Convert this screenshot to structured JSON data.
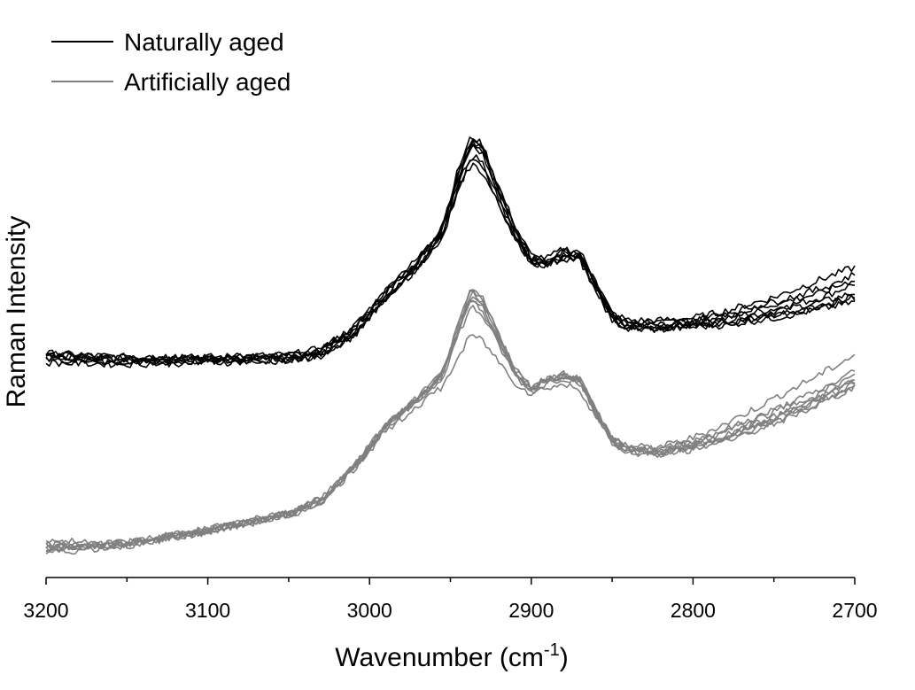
{
  "chart_data": {
    "type": "line",
    "title": "",
    "xlabel": "Wavenumber (cm",
    "xlabel_sup": "-1",
    "xlabel_close": ")",
    "ylabel": "Raman Intensity",
    "x_reversed": true,
    "xlim": [
      3200,
      2700
    ],
    "ylim": [
      0,
      100
    ],
    "y_ticks_shown": false,
    "x_major_ticks": [
      3200,
      3100,
      3000,
      2900,
      2800,
      2700
    ],
    "x_tick_labels": [
      "3200",
      "3100",
      "3000",
      "2900",
      "2800",
      "2700"
    ],
    "x_minor_ticks": [
      3150,
      3050,
      2950,
      2850,
      2750
    ],
    "legend_position": "top-left",
    "groups": [
      {
        "name": "Naturally aged",
        "color": "#000000",
        "x": [
          3200,
          3150,
          3100,
          3050,
          3030,
          3010,
          2990,
          2970,
          2955,
          2945,
          2937,
          2930,
          2920,
          2910,
          2900,
          2890,
          2880,
          2870,
          2860,
          2850,
          2840,
          2820,
          2800,
          2780,
          2750,
          2720,
          2700
        ],
        "series": [
          {
            "values": [
              44.5,
              43.5,
              43.8,
              44.2,
              45.5,
              50,
              58,
              65,
              72,
              84,
              91,
              89,
              80,
              72,
              65,
              65,
              67,
              66,
              60,
              53,
              51,
              51,
              51.5,
              52.5,
              54.5,
              57,
              60
            ]
          },
          {
            "values": [
              44.2,
              43.3,
              43.5,
              44,
              45,
              49,
              57,
              64,
              71,
              82,
              90,
              88,
              79,
              71,
              65,
              64.5,
              66,
              65.5,
              59,
              52.5,
              50.5,
              50.5,
              51,
              52,
              54,
              56,
              58
            ]
          },
          {
            "values": [
              44.8,
              44,
              44,
              44.5,
              45.8,
              50.5,
              58.5,
              65.5,
              72.5,
              85,
              92,
              90,
              81,
              72.5,
              66,
              65.5,
              67.5,
              67,
              60.5,
              53.5,
              52,
              52,
              52.5,
              54,
              57,
              61,
              63.5
            ]
          },
          {
            "values": [
              43.8,
              43,
              43.2,
              43.6,
              44.6,
              48.5,
              56.5,
              63.5,
              70.5,
              80,
              86,
              84,
              77,
              70,
              64.5,
              64,
              65.5,
              65,
              58.5,
              52,
              50,
              50,
              50.5,
              51,
              52.5,
              54.5,
              56
            ]
          },
          {
            "values": [
              44.3,
              43.6,
              43.6,
              44.1,
              45.3,
              49.8,
              57.8,
              64.8,
              71.8,
              83.5,
              91,
              89,
              80,
              71.5,
              65.2,
              64.8,
              66.5,
              66,
              59.5,
              53,
              51,
              51.2,
              51.8,
              53,
              55.5,
              58,
              61
            ]
          },
          {
            "values": [
              43.5,
              42.8,
              43,
              43.4,
              44.4,
              48.8,
              56.8,
              63.8,
              70.8,
              81.5,
              88,
              86,
              78,
              70.5,
              64.8,
              64.2,
              66,
              65.5,
              59,
              52.5,
              50.5,
              50.5,
              51,
              51.5,
              53,
              55,
              57
            ]
          },
          {
            "values": [
              44.6,
              43.8,
              43.9,
              44.3,
              45.6,
              50.2,
              58.2,
              65.2,
              72.2,
              84.5,
              91.5,
              89.5,
              80.5,
              72,
              65.5,
              65,
              67,
              66.5,
              60,
              53.2,
              51.5,
              51.5,
              52,
              53.5,
              56,
              59,
              62
            ]
          },
          {
            "values": [
              42.8,
              42.5,
              42.8,
              43.2,
              44.2,
              48.5,
              56.5,
              63.5,
              70,
              80.5,
              87,
              85,
              77.5,
              70,
              64.5,
              64,
              65.5,
              65,
              58.8,
              52.3,
              50.3,
              50.3,
              50.8,
              51.5,
              53,
              55,
              57.5
            ]
          }
        ]
      },
      {
        "name": "Artificially aged",
        "color": "#808080",
        "x": [
          3200,
          3150,
          3100,
          3050,
          3030,
          3010,
          2990,
          2970,
          2955,
          2945,
          2937,
          2930,
          2920,
          2910,
          2900,
          2890,
          2880,
          2870,
          2860,
          2850,
          2840,
          2820,
          2800,
          2780,
          2750,
          2720,
          2700
        ],
        "series": [
          {
            "values": [
              2,
              3.5,
              6.5,
              10,
              13,
              20,
              29,
              35,
              40,
              50,
              57,
              55,
              48,
              41,
              37,
              39,
              40,
              39,
              32,
              26,
              24,
              23.5,
              25,
              27,
              31,
              35.5,
              39
            ]
          },
          {
            "values": [
              3,
              3.2,
              6,
              9.5,
              12.5,
              19.5,
              28.5,
              34.5,
              39.5,
              49,
              55,
              53,
              46.5,
              40,
              36.5,
              38.5,
              39.5,
              38.5,
              31.5,
              25.5,
              23.5,
              23,
              24.5,
              26.5,
              30.5,
              35,
              38.5
            ]
          },
          {
            "values": [
              4,
              3.8,
              6.8,
              10.2,
              13.3,
              20.3,
              29.3,
              35.3,
              40.5,
              51,
              59,
              56.5,
              49,
              41.5,
              37.5,
              39.5,
              40.5,
              39.5,
              32.5,
              26.5,
              24.5,
              24.5,
              26.5,
              29.5,
              35,
              40.5,
              44.5
            ]
          },
          {
            "values": [
              1.5,
              3,
              6.2,
              9.8,
              12.8,
              19.8,
              28.8,
              34.8,
              39.8,
              49.5,
              56,
              54,
              47.5,
              40.5,
              37,
              39,
              40,
              39,
              32,
              25.8,
              23.8,
              23,
              24.3,
              26,
              29.5,
              34,
              37.5
            ]
          },
          {
            "values": [
              2.5,
              3.6,
              6.6,
              10.1,
              13.1,
              20.1,
              29.1,
              35.1,
              40.2,
              50.5,
              58,
              56,
              48.5,
              41,
              37.2,
              39.2,
              40.2,
              39.2,
              32.3,
              26.2,
              24.2,
              23.8,
              25.5,
              27.8,
              32,
              36.5,
              40
            ]
          },
          {
            "values": [
              2.2,
              3.4,
              6.4,
              9.9,
              12.9,
              19.9,
              28.9,
              34.9,
              40,
              49.8,
              56.5,
              54.5,
              47.8,
              40.8,
              36.8,
              38.8,
              39.8,
              38.8,
              31.8,
              25.9,
              23.9,
              23.3,
              24.8,
              26.8,
              30.8,
              35.3,
              38.8
            ]
          },
          {
            "values": [
              3.5,
              3.7,
              6.7,
              10,
              13.2,
              20.2,
              29.2,
              35.2,
              40.3,
              50.8,
              58.5,
              56.2,
              48.8,
              41.2,
              37.4,
              39.4,
              40.4,
              39.4,
              32.4,
              26.3,
              24.3,
              24,
              25.8,
              28.2,
              32.5,
              37,
              41
            ]
          },
          {
            "values": [
              2.8,
              3.3,
              6.3,
              9.7,
              12.7,
              19.5,
              28,
              33.5,
              37.5,
              44,
              49,
              47.5,
              43,
              38.5,
              36,
              37.5,
              38,
              37,
              31,
              25.3,
              23.3,
              22.8,
              24,
              26,
              29.8,
              34.5,
              38
            ]
          }
        ]
      }
    ]
  }
}
